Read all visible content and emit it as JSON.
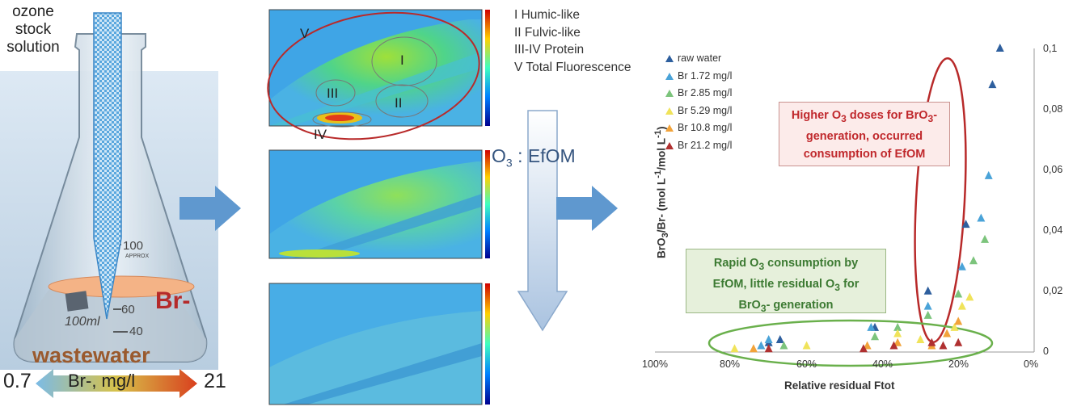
{
  "left": {
    "ozone_label": "ozone\nstock\nsolution",
    "flask": {
      "graduations": [
        "100",
        "60",
        "40"
      ],
      "approx": "APPROX",
      "volume": "100ml",
      "br_label": "Br-",
      "wastewater_label": "wastewater"
    },
    "br_scale": {
      "min": "0.7",
      "label": "Br-, mg/l",
      "max": "21"
    }
  },
  "eem": {
    "regions": [
      "I",
      "II",
      "III",
      "IV",
      "V"
    ],
    "legend": [
      "I Humic-like",
      "II Fulvic-like",
      "III-IV Protein",
      "V Total Fluorescence"
    ],
    "arrow_label": "O",
    "arrow_sub": "3",
    "arrow_suffix": " : EfOM"
  },
  "chart_data": {
    "type": "scatter",
    "xlabel": "Relative residual Ftot",
    "ylabel": "BrO3-/Br- (mol L-1/mol L-1)",
    "xlim": [
      100,
      0
    ],
    "ylim": [
      0,
      0.1
    ],
    "x_ticks": [
      "100%",
      "80%",
      "60%",
      "40%",
      "20%",
      "0%"
    ],
    "y_ticks": [
      "0",
      "0,02",
      "0,04",
      "0,06",
      "0,08",
      "0,1"
    ],
    "legend_position": "top-left",
    "series": [
      {
        "name": "raw water",
        "color": "#2e5f9e",
        "points": [
          [
            9,
            0.1
          ],
          [
            11,
            0.088
          ],
          [
            18,
            0.042
          ],
          [
            28,
            0.02
          ],
          [
            42,
            0.008
          ],
          [
            67,
            0.004
          ],
          [
            70,
            0.003
          ]
        ]
      },
      {
        "name": "Br 1.72 mg/l",
        "color": "#4aa3d8",
        "points": [
          [
            12,
            0.058
          ],
          [
            14,
            0.044
          ],
          [
            19,
            0.028
          ],
          [
            28,
            0.015
          ],
          [
            43,
            0.008
          ],
          [
            70,
            0.004
          ],
          [
            72,
            0.002
          ]
        ]
      },
      {
        "name": "Br 2.85 mg/l",
        "color": "#7cc47c",
        "points": [
          [
            13,
            0.037
          ],
          [
            16,
            0.03
          ],
          [
            20,
            0.019
          ],
          [
            28,
            0.012
          ],
          [
            36,
            0.008
          ],
          [
            42,
            0.005
          ],
          [
            66,
            0.002
          ]
        ]
      },
      {
        "name": "Br 5.29 mg/l",
        "color": "#f0e35a",
        "points": [
          [
            17,
            0.018
          ],
          [
            19,
            0.015
          ],
          [
            21,
            0.008
          ],
          [
            30,
            0.004
          ],
          [
            36,
            0.006
          ],
          [
            60,
            0.002
          ],
          [
            79,
            0.001
          ]
        ]
      },
      {
        "name": "Br 10.8 mg/l",
        "color": "#f2a33a",
        "points": [
          [
            20,
            0.01
          ],
          [
            23,
            0.006
          ],
          [
            27,
            0.002
          ],
          [
            36,
            0.003
          ],
          [
            44,
            0.002
          ],
          [
            74,
            0.001
          ]
        ]
      },
      {
        "name": "Br 21.2 mg/l",
        "color": "#b03030",
        "points": [
          [
            20,
            0.003
          ],
          [
            24,
            0.002
          ],
          [
            27,
            0.003
          ],
          [
            37,
            0.002
          ],
          [
            45,
            0.001
          ],
          [
            70,
            0.001
          ]
        ]
      }
    ],
    "annotations": [
      "Higher O3 doses for BrO3- generation, occurred consumption of EfOM",
      "Rapid O3 consumption by EfOM, little residual O3 for BrO3- generation"
    ]
  },
  "notes": {
    "red": [
      "Higher O",
      "3",
      " doses for BrO",
      "3",
      "-",
      "generation, occurred",
      "consumption  of EfOM"
    ],
    "green": [
      "Rapid O",
      "3",
      " consumption  by",
      "EfOM, little residual O",
      "3",
      " for",
      "BrO",
      "3",
      "- generation"
    ]
  },
  "colors": {
    "accent_arrow": "#5f98cf",
    "ellipse_red": "#b82a2a",
    "ellipse_green": "#6ab04c"
  }
}
